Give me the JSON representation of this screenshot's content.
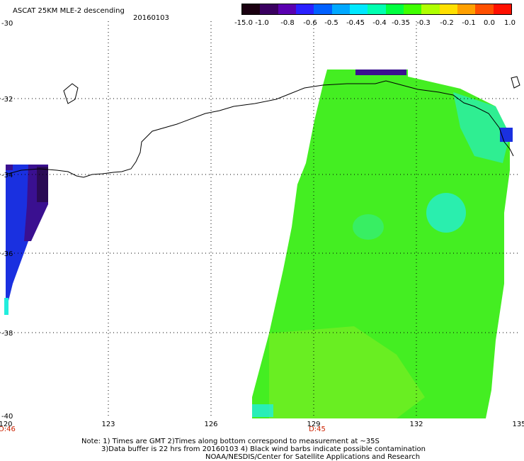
{
  "header": {
    "title": "ASCAT 25KM MLE-2 descending",
    "date": "20160103"
  },
  "colorbar": {
    "labels": [
      "-15.0",
      "-1.0",
      "-0.8",
      "-0.6",
      "-0.5",
      "-0.45",
      "-0.4",
      "-0.35",
      "-0.3",
      "-0.2",
      "-0.1",
      "0.0",
      "1.0"
    ],
    "colors": [
      "#1a0010",
      "#3a0060",
      "#5a00b0",
      "#2a20ff",
      "#0060ff",
      "#00a8ff",
      "#00e8ff",
      "#00ffb0",
      "#00ff40",
      "#40ff00",
      "#b0ff00",
      "#ffe000",
      "#ffa000",
      "#ff5000",
      "#ff1000"
    ]
  },
  "map": {
    "lon_labels": [
      "120",
      "123",
      "126",
      "129",
      "132",
      "135"
    ],
    "lat_labels": [
      "-30",
      "-32",
      "-34",
      "-36",
      "-38",
      "-40"
    ],
    "time_labels": [
      "D:46",
      "D:45"
    ],
    "colors": {
      "green": "#44ee22",
      "lime": "#88ee22",
      "cyan": "#22eedd",
      "blue": "#1a30e0",
      "purple": "#3a1090",
      "darkpurple": "#2a0a55"
    }
  },
  "notes": [
    "Note: 1) Times are GMT 2)Times along bottom correspond to measurement at ~35S",
    "3)Data buffer is 22 hrs from 20160103 4) Black wind barbs indicate possible contamination",
    "NOAA/NESDIS/Center for Satellite Applications and Research"
  ]
}
